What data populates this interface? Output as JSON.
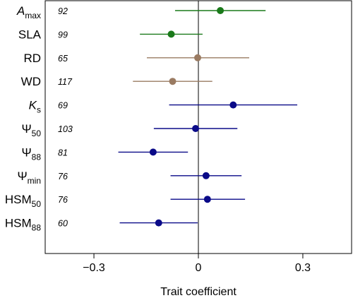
{
  "chart_data": {
    "type": "forest",
    "xlabel": "Trait coefficient",
    "xlim": [
      -0.44,
      0.44
    ],
    "x_ticks": [
      {
        "value": -0.3,
        "label": "−0.3"
      },
      {
        "value": 0,
        "label": "0"
      },
      {
        "value": 0.3,
        "label": "0.3"
      }
    ],
    "reference_line": 0,
    "rows": [
      {
        "label": "A",
        "subscript": "max",
        "italic": true,
        "n": "92",
        "coef": 0.063,
        "lower": -0.067,
        "upper": 0.193,
        "color": "#1a7a1a"
      },
      {
        "label": "SLA",
        "subscript": "",
        "italic": false,
        "n": "99",
        "coef": -0.078,
        "lower": -0.168,
        "upper": 0.012,
        "color": "#1a7a1a"
      },
      {
        "label": "RD",
        "subscript": "",
        "italic": false,
        "n": "65",
        "coef": -0.002,
        "lower": -0.148,
        "upper": 0.146,
        "color": "#9a7b62"
      },
      {
        "label": "WD",
        "subscript": "",
        "italic": false,
        "n": "117",
        "coef": -0.074,
        "lower": -0.188,
        "upper": 0.04,
        "color": "#9a7b62"
      },
      {
        "label": "K",
        "subscript": "s",
        "italic": true,
        "n": "69",
        "coef": 0.1,
        "lower": -0.084,
        "upper": 0.284,
        "color": "#0a0a88"
      },
      {
        "label": "Ψ",
        "subscript": "50",
        "italic": false,
        "n": "103",
        "coef": -0.008,
        "lower": -0.128,
        "upper": 0.112,
        "color": "#0a0a88"
      },
      {
        "label": "Ψ",
        "subscript": "88",
        "italic": false,
        "n": "81",
        "coef": -0.13,
        "lower": -0.23,
        "upper": -0.03,
        "color": "#0a0a88"
      },
      {
        "label": "Ψ",
        "subscript": "min",
        "italic": false,
        "n": "76",
        "coef": 0.022,
        "lower": -0.08,
        "upper": 0.124,
        "color": "#0a0a88"
      },
      {
        "label": "HSM",
        "subscript": "50",
        "italic": false,
        "n": "76",
        "coef": 0.026,
        "lower": -0.08,
        "upper": 0.134,
        "color": "#0a0a88"
      },
      {
        "label": "HSM",
        "subscript": "88",
        "italic": false,
        "n": "60",
        "coef": -0.114,
        "lower": -0.226,
        "upper": -0.002,
        "color": "#0a0a88"
      }
    ]
  }
}
